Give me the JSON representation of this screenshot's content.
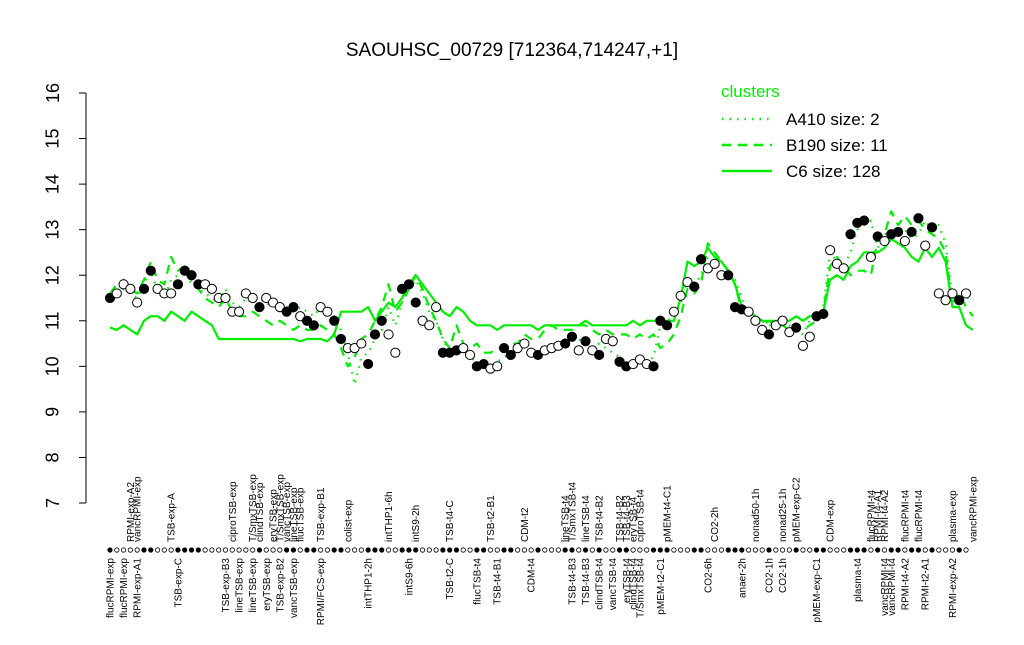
{
  "chart_data": {
    "type": "line",
    "title": "SAOUHSC_00729 [712364,714247,+1]",
    "xlabel": "",
    "ylabel": "",
    "ylim": [
      7,
      16
    ],
    "yticks": [
      7,
      8,
      9,
      10,
      11,
      12,
      13,
      14,
      15,
      16
    ],
    "grid": false,
    "legend": {
      "title": "clusters",
      "position": "top-right",
      "color": "#00ee00",
      "entries": [
        {
          "label": "A410 size: 2",
          "style": "dotted"
        },
        {
          "label": "B190 size: 11",
          "style": "dashed"
        },
        {
          "label": "C6 size: 128",
          "style": "solid"
        }
      ]
    },
    "top_tick_labels": [
      {
        "i": 3,
        "label": "RPMI-exp-A2"
      },
      {
        "i": 4,
        "label": "vancRPMI-exp"
      },
      {
        "i": 9,
        "label": "TSB-exp-A"
      },
      {
        "i": 18,
        "label": "ciproTSB-exp"
      },
      {
        "i": 21,
        "label": "T/SmxTSB-exp"
      },
      {
        "i": 22,
        "label": "clindTSB-exp"
      },
      {
        "i": 24,
        "label": "eryTSB-exp"
      },
      {
        "i": 25,
        "label": "T/SmxTSB-exp"
      },
      {
        "i": 26,
        "label": "vancTSB-exp"
      },
      {
        "i": 27,
        "label": "lineTSB-exp"
      },
      {
        "i": 28,
        "label": "flucTSB-exp"
      },
      {
        "i": 31,
        "label": "TSB-exp-B1"
      },
      {
        "i": 35,
        "label": "colist-exp"
      },
      {
        "i": 41,
        "label": "intTHP1-6h"
      },
      {
        "i": 45,
        "label": "intS9-2h"
      },
      {
        "i": 50,
        "label": "TSB-t4-C"
      },
      {
        "i": 56,
        "label": "TSB-t2-B1"
      },
      {
        "i": 61,
        "label": "CDM-t2"
      },
      {
        "i": 67,
        "label": "lineTSB-t4"
      },
      {
        "i": 68,
        "label": "T/SmxTSB-t4"
      },
      {
        "i": 70,
        "label": "lineTSB-t4"
      },
      {
        "i": 72,
        "label": "TSB-t4-B2"
      },
      {
        "i": 75,
        "label": "TSB-t4-B2"
      },
      {
        "i": 76,
        "label": "TSB-t4-B3"
      },
      {
        "i": 77,
        "label": "eryTSB-t4"
      },
      {
        "i": 78,
        "label": "ciproTSB-t4"
      },
      {
        "i": 82,
        "label": "pMEM-t4-C1"
      },
      {
        "i": 89,
        "label": "CO2-2h"
      },
      {
        "i": 95,
        "label": "nonad50-1h"
      },
      {
        "i": 99,
        "label": "nonad25-1h"
      },
      {
        "i": 101,
        "label": "pMEM-exp-C2"
      },
      {
        "i": 106,
        "label": "CDM-exp"
      },
      {
        "i": 112,
        "label": "flucRPMI-t4"
      },
      {
        "i": 113,
        "label": "RPMI-t4-A1"
      },
      {
        "i": 114,
        "label": "RPMI-t4-A2"
      },
      {
        "i": 117,
        "label": "flucRPMI-t4"
      },
      {
        "i": 119,
        "label": "flucRPMI-t4"
      },
      {
        "i": 124,
        "label": "plasma-exp"
      },
      {
        "i": 127,
        "label": "vancRPMI-exp"
      }
    ],
    "bottom_tick_labels": [
      {
        "i": 0,
        "label": "flucRPMI-exp"
      },
      {
        "i": 2,
        "label": "flucRPMI-exp"
      },
      {
        "i": 4,
        "label": "RPMI-exp-A1"
      },
      {
        "i": 10,
        "label": "TSB-exp-C"
      },
      {
        "i": 17,
        "label": "TSB-exp-B3"
      },
      {
        "i": 19,
        "label": "lineTSB-exp"
      },
      {
        "i": 21,
        "label": "lineTSB-exp"
      },
      {
        "i": 23,
        "label": "eryTSB-exp"
      },
      {
        "i": 25,
        "label": "TSB-exp-B2"
      },
      {
        "i": 27,
        "label": "vancTSB-exp"
      },
      {
        "i": 31,
        "label": "RPMI/FCS-exp"
      },
      {
        "i": 38,
        "label": "intTHP1-2h"
      },
      {
        "i": 44,
        "label": "intS9-6h"
      },
      {
        "i": 50,
        "label": "TSB-t2-C"
      },
      {
        "i": 54,
        "label": "flucTSB-t4"
      },
      {
        "i": 57,
        "label": "TSB-t4-B1"
      },
      {
        "i": 62,
        "label": "CDM-t4"
      },
      {
        "i": 68,
        "label": "TSB-t4-B3"
      },
      {
        "i": 70,
        "label": "TSB-t4-B3"
      },
      {
        "i": 72,
        "label": "clindTSB-t4"
      },
      {
        "i": 74,
        "label": "vancTSB-t4"
      },
      {
        "i": 76,
        "label": "eryTSB-t4"
      },
      {
        "i": 77,
        "label": "clindTSB-t4"
      },
      {
        "i": 78,
        "label": "T/SmxTSB-t4"
      },
      {
        "i": 81,
        "label": "pMEM-t2-C1"
      },
      {
        "i": 88,
        "label": "CO2-6h"
      },
      {
        "i": 93,
        "label": "anaer-2h"
      },
      {
        "i": 97,
        "label": "CO2-1h"
      },
      {
        "i": 99,
        "label": "CO2-1h"
      },
      {
        "i": 104,
        "label": "pMEM-exp-C1"
      },
      {
        "i": 110,
        "label": "plasma-t4"
      },
      {
        "i": 114,
        "label": "vancRPMI-t4"
      },
      {
        "i": 115,
        "label": "vancRPMI-t4"
      },
      {
        "i": 117,
        "label": "RPMI-t4-A2"
      },
      {
        "i": 120,
        "label": "RPMI-t2-A1"
      },
      {
        "i": 124,
        "label": "RPMI-exp-A2"
      }
    ],
    "series": [
      {
        "name": "A410 size: 2",
        "style": "dotted",
        "color": "#00ee00",
        "values": [
          11.5,
          11.6,
          11.7,
          11.6,
          11.5,
          11.8,
          12.1,
          11.6,
          11.5,
          11.9,
          12.0,
          12.1,
          11.8,
          11.7,
          11.6,
          11.5,
          11.4,
          11.7,
          11.4,
          11.3,
          11.5,
          11.6,
          11.5,
          11.4,
          11.3,
          11.4,
          11.3,
          11.2,
          11.3,
          11.2,
          11.1,
          11.3,
          11.2,
          11.1,
          10.8,
          10.3,
          9.6,
          10.2,
          10.3,
          10.6,
          10.8,
          11.3,
          10.9,
          11.4,
          11.7,
          11.9,
          11.6,
          11.2,
          11.0,
          10.6,
          10.3,
          10.4,
          10.3,
          10.2,
          10.1,
          10.0,
          10.0,
          10.1,
          10.2,
          10.3,
          10.4,
          10.5,
          10.3,
          10.2,
          10.3,
          10.3,
          10.4,
          10.5,
          10.6,
          10.6,
          10.5,
          10.4,
          10.5,
          10.4,
          10.3,
          10.2,
          10.1,
          10.1,
          10.1,
          10.1,
          10.2,
          10.9,
          11.0,
          11.1,
          11.4,
          11.9,
          11.8,
          12.0,
          12.4,
          12.3,
          12.1,
          12.0,
          11.9,
          11.5,
          11.2,
          11.1,
          11.0,
          10.9,
          10.9,
          11.0,
          10.9,
          10.8,
          10.7,
          11.0,
          11.1,
          11.3,
          12.5,
          12.3,
          12.2,
          12.5,
          13.0,
          13.1,
          13.2,
          12.6,
          12.9,
          12.9,
          13.0,
          13.0,
          12.8,
          12.9,
          13.2,
          13.0,
          13.1,
          12.7,
          11.5,
          11.5,
          11.5,
          11.5
        ]
      },
      {
        "name": "B190 size: 11",
        "style": "dashed",
        "color": "#00ee00",
        "values": [
          11.6,
          11.8,
          11.9,
          11.7,
          11.6,
          11.9,
          12.3,
          11.9,
          11.8,
          12.4,
          12.1,
          12.2,
          11.9,
          11.7,
          11.5,
          11.4,
          11.3,
          11.5,
          11.2,
          11.1,
          11.1,
          11.2,
          11.1,
          11.0,
          10.9,
          11.0,
          10.9,
          10.8,
          10.9,
          10.8,
          10.8,
          10.9,
          10.8,
          10.7,
          10.4,
          10.0,
          10.2,
          10.6,
          10.7,
          11.0,
          11.3,
          11.8,
          11.2,
          11.4,
          11.7,
          12.0,
          11.7,
          11.3,
          11.0,
          10.6,
          10.4,
          10.9,
          10.5,
          10.4,
          10.5,
          10.3,
          10.3,
          10.4,
          10.4,
          10.5,
          10.5,
          10.7,
          10.6,
          10.6,
          10.8,
          10.9,
          10.8,
          10.8,
          10.8,
          10.9,
          10.9,
          10.8,
          10.7,
          10.8,
          10.7,
          10.7,
          10.7,
          10.6,
          10.7,
          10.6,
          10.7,
          10.4,
          10.5,
          10.7,
          11.1,
          11.7,
          11.6,
          11.8,
          12.7,
          12.5,
          12.3,
          12.1,
          11.8,
          11.2,
          11.1,
          11.0,
          10.9,
          11.0,
          10.9,
          10.9,
          10.8,
          10.9,
          10.8,
          10.9,
          11.0,
          11.2,
          12.2,
          12.4,
          12.2,
          12.0,
          12.1,
          12.1,
          12.0,
          12.8,
          12.9,
          13.4,
          13.1,
          13.3,
          13.1,
          13.2,
          13.0,
          12.9,
          12.8,
          12.5,
          11.4,
          11.6,
          11.3,
          11.1
        ]
      },
      {
        "name": "C6 size: 128",
        "style": "solid",
        "color": "#00ee00",
        "values": [
          10.85,
          10.8,
          10.9,
          10.8,
          10.7,
          11.0,
          11.1,
          11.1,
          11.0,
          11.2,
          11.1,
          11.0,
          11.2,
          11.1,
          11.0,
          10.9,
          10.6,
          10.6,
          10.6,
          10.6,
          10.6,
          10.6,
          10.6,
          10.6,
          10.6,
          10.6,
          10.6,
          10.6,
          10.55,
          10.6,
          10.6,
          10.6,
          10.55,
          10.7,
          11.2,
          11.2,
          11.2,
          11.2,
          11.3,
          11.0,
          11.2,
          11.4,
          11.3,
          11.5,
          11.8,
          12.0,
          11.8,
          11.6,
          11.4,
          11.2,
          11.1,
          11.3,
          11.2,
          11.0,
          10.9,
          10.9,
          10.9,
          10.8,
          10.9,
          10.9,
          10.9,
          10.9,
          10.9,
          10.8,
          10.9,
          10.9,
          10.9,
          10.9,
          10.9,
          10.9,
          11.0,
          10.9,
          10.9,
          10.9,
          10.9,
          10.9,
          10.9,
          11.0,
          10.9,
          11.0,
          11.0,
          11.0,
          11.0,
          11.0,
          11.5,
          12.3,
          12.2,
          12.3,
          12.6,
          12.4,
          12.3,
          12.1,
          11.8,
          11.3,
          11.2,
          11.1,
          11.0,
          11.0,
          11.0,
          11.0,
          11.0,
          11.1,
          11.0,
          11.1,
          11.1,
          11.2,
          11.9,
          12.0,
          11.9,
          12.2,
          12.3,
          12.5,
          12.5,
          12.5,
          12.6,
          12.8,
          12.7,
          12.6,
          12.4,
          12.3,
          12.6,
          12.4,
          12.6,
          12.3,
          11.3,
          11.3,
          10.9,
          10.8
        ]
      }
    ],
    "samples": [
      [
        11.5,
        true
      ],
      [
        11.6,
        false
      ],
      [
        11.8,
        false
      ],
      [
        11.7,
        false
      ],
      [
        11.4,
        false
      ],
      [
        11.7,
        true
      ],
      [
        12.1,
        true
      ],
      [
        11.7,
        false
      ],
      [
        11.6,
        false
      ],
      [
        11.6,
        false
      ],
      [
        11.8,
        true
      ],
      [
        12.1,
        true
      ],
      [
        12.0,
        true
      ],
      [
        11.8,
        true
      ],
      [
        11.8,
        false
      ],
      [
        11.7,
        false
      ],
      [
        11.5,
        false
      ],
      [
        11.5,
        false
      ],
      [
        11.2,
        false
      ],
      [
        11.2,
        false
      ],
      [
        11.6,
        false
      ],
      [
        11.5,
        false
      ],
      [
        11.3,
        true
      ],
      [
        11.5,
        false
      ],
      [
        11.4,
        false
      ],
      [
        11.3,
        false
      ],
      [
        11.2,
        true
      ],
      [
        11.3,
        true
      ],
      [
        11.1,
        false
      ],
      [
        11.0,
        true
      ],
      [
        10.9,
        true
      ],
      [
        11.3,
        false
      ],
      [
        11.2,
        false
      ],
      [
        11.0,
        true
      ],
      [
        10.6,
        true
      ],
      [
        10.4,
        false
      ],
      [
        10.4,
        false
      ],
      [
        10.5,
        false
      ],
      [
        10.05,
        true
      ],
      [
        10.7,
        true
      ],
      [
        11.0,
        true
      ],
      [
        10.7,
        false
      ],
      [
        10.3,
        false
      ],
      [
        11.7,
        true
      ],
      [
        11.8,
        true
      ],
      [
        11.4,
        true
      ],
      [
        11.0,
        false
      ],
      [
        10.9,
        false
      ],
      [
        11.3,
        false
      ],
      [
        10.3,
        true
      ],
      [
        10.3,
        true
      ],
      [
        10.35,
        true
      ],
      [
        10.4,
        false
      ],
      [
        10.25,
        false
      ],
      [
        10.0,
        true
      ],
      [
        10.05,
        true
      ],
      [
        9.95,
        false
      ],
      [
        10.0,
        false
      ],
      [
        10.4,
        true
      ],
      [
        10.25,
        true
      ],
      [
        10.4,
        false
      ],
      [
        10.5,
        false
      ],
      [
        10.3,
        false
      ],
      [
        10.25,
        true
      ],
      [
        10.35,
        false
      ],
      [
        10.4,
        false
      ],
      [
        10.45,
        false
      ],
      [
        10.5,
        true
      ],
      [
        10.65,
        true
      ],
      [
        10.35,
        false
      ],
      [
        10.55,
        true
      ],
      [
        10.35,
        false
      ],
      [
        10.25,
        true
      ],
      [
        10.6,
        false
      ],
      [
        10.55,
        false
      ],
      [
        10.1,
        true
      ],
      [
        10.0,
        true
      ],
      [
        10.05,
        false
      ],
      [
        10.15,
        false
      ],
      [
        10.05,
        false
      ],
      [
        10.0,
        true
      ],
      [
        11.0,
        true
      ],
      [
        10.9,
        true
      ],
      [
        11.2,
        false
      ],
      [
        11.55,
        false
      ],
      [
        11.85,
        false
      ],
      [
        11.75,
        true
      ],
      [
        12.35,
        true
      ],
      [
        12.15,
        false
      ],
      [
        12.25,
        false
      ],
      [
        12.0,
        false
      ],
      [
        12.0,
        true
      ],
      [
        11.3,
        true
      ],
      [
        11.25,
        true
      ],
      [
        11.2,
        false
      ],
      [
        11.0,
        false
      ],
      [
        10.8,
        false
      ],
      [
        10.7,
        true
      ],
      [
        10.9,
        false
      ],
      [
        11.0,
        false
      ],
      [
        10.75,
        false
      ],
      [
        10.85,
        true
      ],
      [
        10.45,
        false
      ],
      [
        10.65,
        false
      ],
      [
        11.1,
        true
      ],
      [
        11.15,
        true
      ],
      [
        12.55,
        false
      ],
      [
        12.25,
        false
      ],
      [
        12.15,
        false
      ],
      [
        12.9,
        true
      ],
      [
        13.15,
        true
      ],
      [
        13.2,
        true
      ],
      [
        12.4,
        false
      ],
      [
        12.85,
        true
      ],
      [
        12.75,
        false
      ],
      [
        12.9,
        true
      ],
      [
        12.95,
        true
      ],
      [
        12.75,
        false
      ],
      [
        12.95,
        true
      ],
      [
        13.25,
        true
      ],
      [
        12.65,
        false
      ],
      [
        13.05,
        true
      ],
      [
        11.6,
        false
      ],
      [
        11.45,
        false
      ],
      [
        11.6,
        false
      ],
      [
        11.45,
        true
      ],
      [
        11.6,
        false
      ]
    ]
  }
}
